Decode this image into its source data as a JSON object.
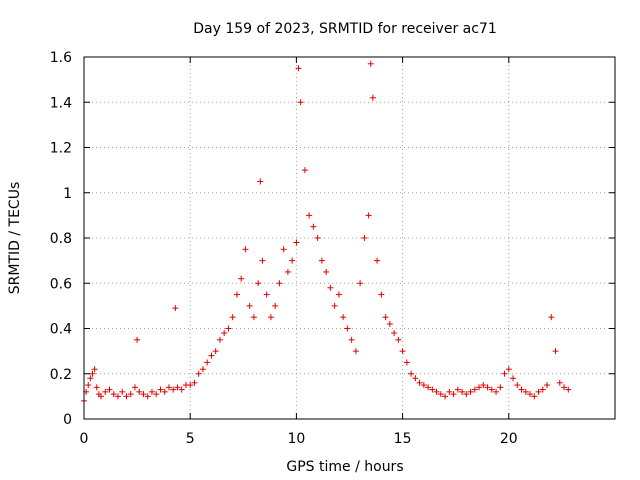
{
  "chart_data": {
    "type": "scatter",
    "title": "Day 159 of 2023, SRMTID for receiver ac71",
    "xlabel": "GPS time / hours",
    "ylabel": "SRMTID / TECUs",
    "xlim": [
      0,
      25
    ],
    "ylim": [
      0,
      1.6
    ],
    "xticks": [
      0,
      5,
      10,
      15,
      20
    ],
    "yticks": [
      0,
      0.2,
      0.4,
      0.6,
      0.8,
      1,
      1.2,
      1.4,
      1.6
    ],
    "xtick_labels": [
      "0",
      "5",
      "10",
      "15",
      "20"
    ],
    "ytick_labels": [
      "0",
      "0.2",
      "0.4",
      "0.6",
      "0.8",
      "1",
      "1.2",
      "1.4",
      "1.6"
    ],
    "grid": true,
    "marker": "+",
    "color": "#e00000",
    "series": [
      {
        "name": "SRMTID",
        "x": [
          0.0,
          0.1,
          0.2,
          0.3,
          0.4,
          0.5,
          0.6,
          0.7,
          0.8,
          1.0,
          1.2,
          1.4,
          1.6,
          1.8,
          2.0,
          2.2,
          2.4,
          2.5,
          2.6,
          2.8,
          3.0,
          3.2,
          3.4,
          3.6,
          3.8,
          4.0,
          4.2,
          4.3,
          4.4,
          4.6,
          4.8,
          5.0,
          5.2,
          5.4,
          5.6,
          5.8,
          6.0,
          6.2,
          6.4,
          6.6,
          6.8,
          7.0,
          7.2,
          7.4,
          7.6,
          7.8,
          8.0,
          8.2,
          8.3,
          8.4,
          8.6,
          8.8,
          9.0,
          9.2,
          9.4,
          9.6,
          9.8,
          10.0,
          10.1,
          10.2,
          10.4,
          10.6,
          10.8,
          11.0,
          11.2,
          11.4,
          11.6,
          11.8,
          12.0,
          12.2,
          12.4,
          12.6,
          12.8,
          13.0,
          13.2,
          13.4,
          13.5,
          13.6,
          13.8,
          14.0,
          14.2,
          14.4,
          14.6,
          14.8,
          15.0,
          15.2,
          15.4,
          15.6,
          15.8,
          16.0,
          16.2,
          16.4,
          16.6,
          16.8,
          17.0,
          17.2,
          17.4,
          17.6,
          17.8,
          18.0,
          18.2,
          18.4,
          18.6,
          18.8,
          19.0,
          19.2,
          19.4,
          19.6,
          19.8,
          20.0,
          20.2,
          20.4,
          20.6,
          20.8,
          21.0,
          21.2,
          21.4,
          21.6,
          21.8,
          22.0,
          22.2,
          22.4,
          22.6,
          22.8
        ],
        "y": [
          0.08,
          0.12,
          0.15,
          0.18,
          0.2,
          0.22,
          0.14,
          0.11,
          0.1,
          0.12,
          0.13,
          0.11,
          0.1,
          0.12,
          0.1,
          0.11,
          0.14,
          0.35,
          0.12,
          0.11,
          0.1,
          0.12,
          0.11,
          0.13,
          0.12,
          0.14,
          0.13,
          0.49,
          0.14,
          0.13,
          0.15,
          0.15,
          0.16,
          0.2,
          0.22,
          0.25,
          0.28,
          0.3,
          0.35,
          0.38,
          0.4,
          0.45,
          0.55,
          0.62,
          0.75,
          0.5,
          0.45,
          0.6,
          1.05,
          0.7,
          0.55,
          0.45,
          0.5,
          0.6,
          0.75,
          0.65,
          0.7,
          0.78,
          1.55,
          1.4,
          1.1,
          0.9,
          0.85,
          0.8,
          0.7,
          0.65,
          0.58,
          0.5,
          0.55,
          0.45,
          0.4,
          0.35,
          0.3,
          0.6,
          0.8,
          0.9,
          1.57,
          1.42,
          0.7,
          0.55,
          0.45,
          0.42,
          0.38,
          0.35,
          0.3,
          0.25,
          0.2,
          0.18,
          0.16,
          0.15,
          0.14,
          0.13,
          0.12,
          0.11,
          0.1,
          0.12,
          0.11,
          0.13,
          0.12,
          0.11,
          0.12,
          0.13,
          0.14,
          0.15,
          0.14,
          0.13,
          0.12,
          0.14,
          0.2,
          0.22,
          0.18,
          0.15,
          0.13,
          0.12,
          0.11,
          0.1,
          0.12,
          0.13,
          0.15,
          0.45,
          0.3,
          0.16,
          0.14,
          0.13
        ]
      }
    ]
  }
}
